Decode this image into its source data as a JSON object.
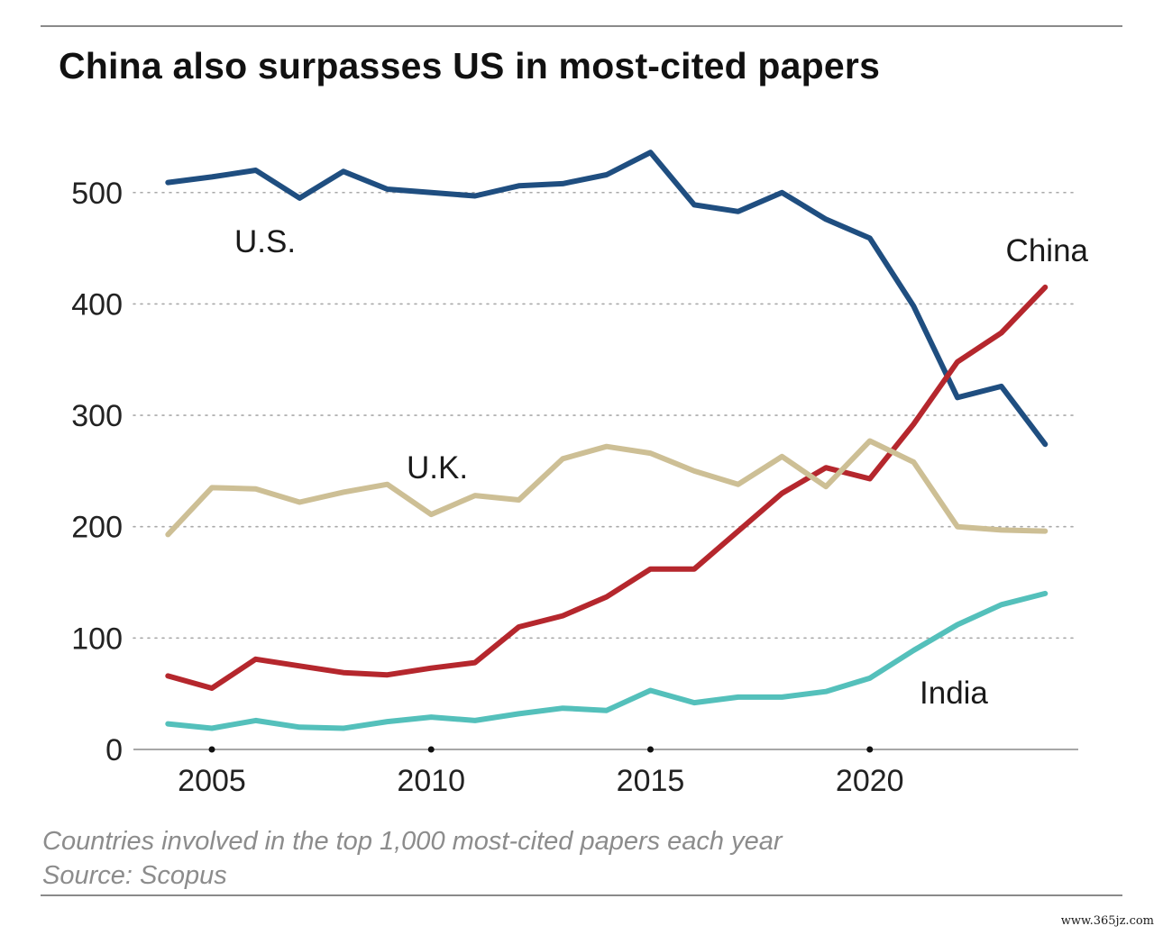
{
  "chart_data": {
    "type": "line",
    "title": "China also surpasses US in most-cited papers",
    "caption": "Countries involved in the top 1,000 most-cited papers each year",
    "source": "Source: Scopus",
    "x": [
      2004,
      2005,
      2006,
      2007,
      2008,
      2009,
      2010,
      2011,
      2012,
      2013,
      2014,
      2015,
      2016,
      2017,
      2018,
      2019,
      2020,
      2021,
      2022,
      2023,
      2024
    ],
    "x_ticks": [
      2005,
      2010,
      2015,
      2020
    ],
    "x_tick_labels": [
      "2005",
      "2010",
      "2015",
      "2020"
    ],
    "xlim": [
      2003.2,
      2025
    ],
    "ylim": [
      0,
      560
    ],
    "y_ticks": [
      0,
      100,
      200,
      300,
      400,
      500
    ],
    "y_tick_labels": [
      "0",
      "100",
      "200",
      "300",
      "400",
      "500"
    ],
    "grid": "horizontal dotted",
    "series": [
      {
        "name": "U.S.",
        "color": "#1f4e80",
        "values": [
          509,
          514,
          520,
          495,
          519,
          503,
          500,
          497,
          506,
          508,
          516,
          536,
          489,
          483,
          500,
          476,
          459,
          398,
          316,
          326,
          274
        ]
      },
      {
        "name": "China",
        "color": "#b5272d",
        "values": [
          66,
          55,
          81,
          75,
          69,
          67,
          73,
          78,
          110,
          120,
          137,
          162,
          162,
          196,
          230,
          253,
          243,
          292,
          348,
          374,
          415
        ]
      },
      {
        "name": "U.K.",
        "color": "#cdbf95",
        "values": [
          193,
          235,
          234,
          222,
          231,
          238,
          211,
          228,
          224,
          261,
          272,
          266,
          250,
          238,
          263,
          236,
          277,
          258,
          200,
          197,
          196
        ]
      },
      {
        "name": "India",
        "color": "#54c0bb",
        "values": [
          23,
          19,
          26,
          20,
          19,
          25,
          29,
          26,
          32,
          37,
          35,
          53,
          42,
          47,
          47,
          52,
          64,
          89,
          112,
          130,
          140
        ]
      }
    ],
    "annotations": [
      "U.S.",
      "China",
      "U.K.",
      "India"
    ]
  },
  "watermark": "www.365jz.com"
}
